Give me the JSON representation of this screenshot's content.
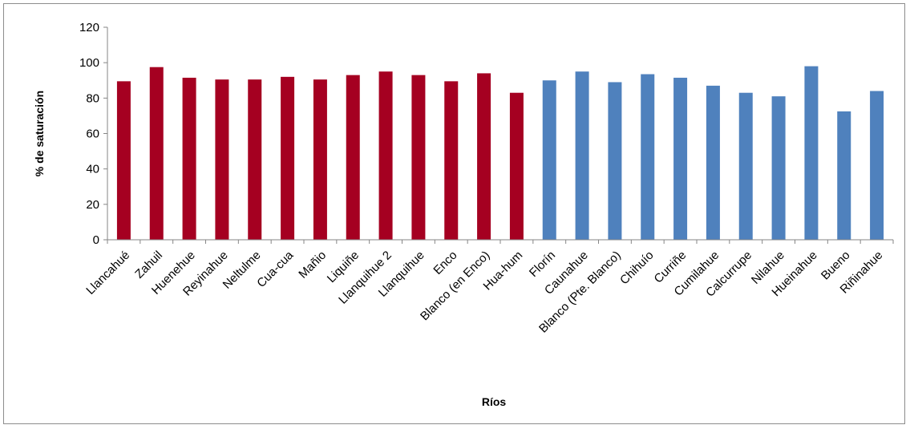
{
  "chart_data": {
    "type": "bar",
    "title": "",
    "xlabel": "Ríos",
    "ylabel": "% de saturación",
    "ylim": [
      0,
      120
    ],
    "yticks": [
      0,
      20,
      40,
      60,
      80,
      100,
      120
    ],
    "grid": false,
    "legend": "none",
    "colors": {
      "group_a": "#a50021",
      "group_b": "#4f81bd",
      "axis": "#868686"
    },
    "categories": [
      "Llancahué",
      "Zahuil",
      "Huenehue",
      "Reyinahue",
      "Neltulme",
      "Cua-cua",
      "Mañio",
      "Liquiñe",
      "Llanquihue 2",
      "Llanquihue",
      "Enco",
      "Blanco (en Enco)",
      "Hua-hum",
      "Florín",
      "Caunahue",
      "Blanco (Pte. Blanco)",
      "Chihuío",
      "Curriñe",
      "Cumilahue",
      "Calcurrupe",
      "Nilahue",
      "Hueinahue",
      "Bueno",
      "Riñinahue"
    ],
    "values": [
      89.5,
      97.5,
      91.5,
      90.5,
      90.5,
      92,
      90.5,
      93,
      95,
      93,
      89.5,
      94,
      83,
      90,
      95,
      89,
      93.5,
      91.5,
      87,
      83,
      81,
      98,
      72.5,
      84
    ],
    "bar_groups": [
      "group_a",
      "group_a",
      "group_a",
      "group_a",
      "group_a",
      "group_a",
      "group_a",
      "group_a",
      "group_a",
      "group_a",
      "group_a",
      "group_a",
      "group_a",
      "group_b",
      "group_b",
      "group_b",
      "group_b",
      "group_b",
      "group_b",
      "group_b",
      "group_b",
      "group_b",
      "group_b",
      "group_b"
    ]
  }
}
